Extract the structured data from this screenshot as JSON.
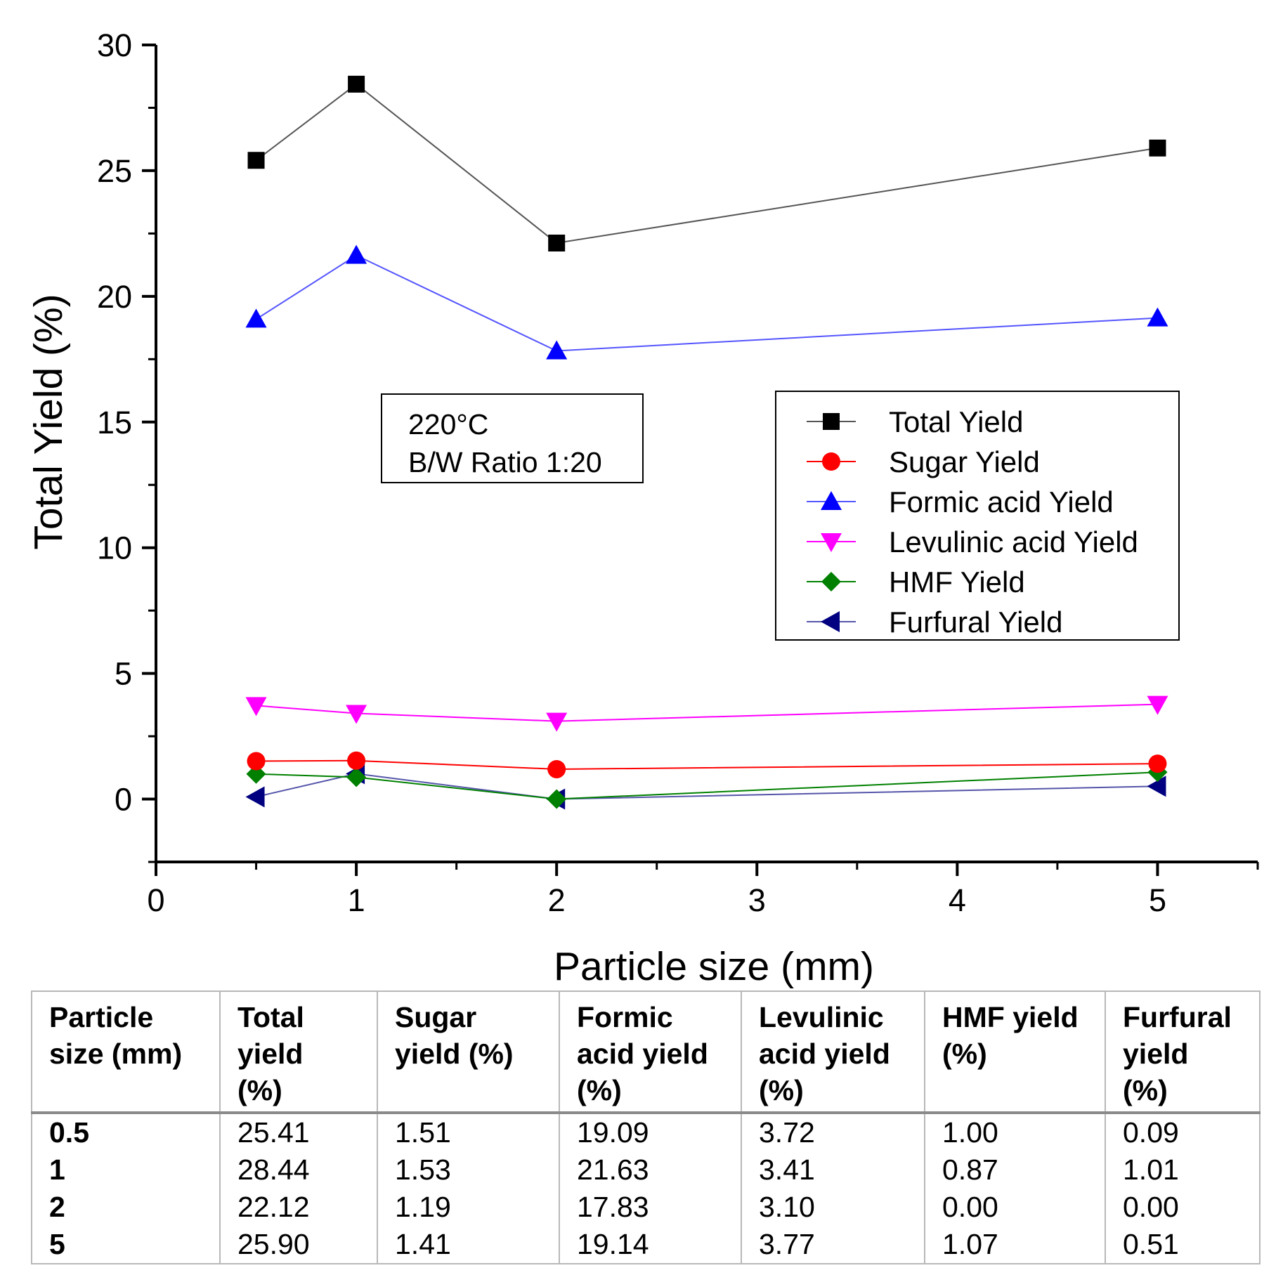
{
  "chart_data": {
    "type": "line",
    "xlabel": "Particle size (mm)",
    "ylabel": "Total Yield (%)",
    "xlim": [
      0,
      5.5
    ],
    "ylim": [
      -2.5,
      30
    ],
    "xticks": [
      "0",
      "1",
      "2",
      "3",
      "4",
      "5"
    ],
    "yticks": [
      "0",
      "5",
      "10",
      "15",
      "20",
      "25",
      "30"
    ],
    "grid": false,
    "legend_position": "right",
    "annotation": [
      "220°C",
      "B/W Ratio 1:20"
    ],
    "x": [
      0.5,
      1,
      2,
      5
    ],
    "series": [
      {
        "name": "Total Yield",
        "marker": "square",
        "color": "#000000",
        "line_color": "#555555",
        "values": [
          25.41,
          28.44,
          22.12,
          25.9
        ]
      },
      {
        "name": "Sugar Yield",
        "marker": "circle",
        "color": "#ff0000",
        "line_color": "#ff0000",
        "values": [
          1.51,
          1.53,
          1.19,
          1.41
        ]
      },
      {
        "name": "Formic acid Yield",
        "marker": "triangle-up",
        "color": "#0000ff",
        "line_color": "#5555ff",
        "values": [
          19.09,
          21.63,
          17.83,
          19.14
        ]
      },
      {
        "name": "Levulinic acid Yield",
        "marker": "triangle-down",
        "color": "#ff00ff",
        "line_color": "#ff00ff",
        "values": [
          3.72,
          3.41,
          3.1,
          3.77
        ]
      },
      {
        "name": "HMF Yield",
        "marker": "diamond",
        "color": "#008000",
        "line_color": "#008000",
        "values": [
          1.0,
          0.87,
          0.0,
          1.07
        ]
      },
      {
        "name": "Furfural Yield",
        "marker": "triangle-left",
        "color": "#000080",
        "line_color": "#5555aa",
        "values": [
          0.09,
          1.01,
          0.0,
          0.51
        ]
      }
    ]
  },
  "table": {
    "headers": [
      [
        "Particle",
        "size (mm)"
      ],
      [
        "Total",
        "yield",
        "(%)"
      ],
      [
        "Sugar",
        "yield (%)"
      ],
      [
        "Formic",
        "acid yield",
        "(%)"
      ],
      [
        "Levulinic",
        "acid yield",
        "(%)"
      ],
      [
        "HMF yield",
        "(%)"
      ],
      [
        "Furfural",
        "yield",
        "(%)"
      ]
    ],
    "rows": [
      [
        "0.5",
        "25.41",
        "1.51",
        "19.09",
        "3.72",
        "1.00",
        "0.09"
      ],
      [
        "1",
        "28.44",
        "1.53",
        "21.63",
        "3.41",
        "0.87",
        "1.01"
      ],
      [
        "2",
        "22.12",
        "1.19",
        "17.83",
        "3.10",
        "0.00",
        "0.00"
      ],
      [
        "5",
        "25.90",
        "1.41",
        "19.14",
        "3.77",
        "1.07",
        "0.51"
      ]
    ]
  }
}
